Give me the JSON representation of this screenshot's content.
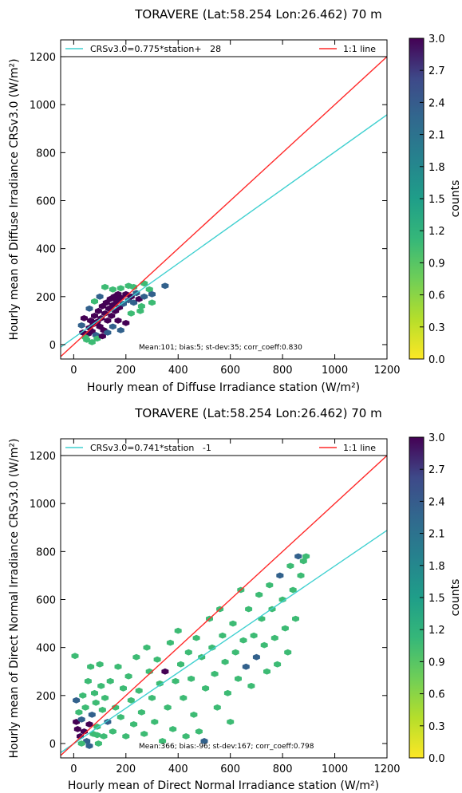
{
  "chart_data": [
    {
      "type": "scatter",
      "subtype": "hexbin-density",
      "title": "TORAVERE (Lat:58.254 Lon:26.462) 70 m",
      "xlabel": "Hourly mean of Diffuse Irradiance station (W/m²)",
      "ylabel": "Hourly mean of Diffuse Irradiance CRSv3.0 (W/m²)",
      "xlim": [
        -50,
        1200
      ],
      "ylim": [
        -60,
        1270
      ],
      "xticks": [
        0,
        200,
        400,
        600,
        800,
        1000,
        1200
      ],
      "yticks": [
        0,
        200,
        400,
        600,
        800,
        1000,
        1200
      ],
      "grid": false,
      "legend_placement": "top",
      "series": [
        {
          "name": "CRSv3.0=0.775*station+   28",
          "kind": "line",
          "slope": 0.775,
          "intercept": 28,
          "color": "#40d0d0"
        },
        {
          "name": "1:1 line",
          "kind": "line",
          "slope": 1,
          "intercept": 0,
          "color": "#ff2a2a"
        }
      ],
      "stats_text": "Mean:101; bias:5; st-dev:35; corr_coeff:0.830",
      "colorbar": {
        "label": "counts",
        "range": [
          0.0,
          3.0
        ],
        "ticks": [
          "0.0",
          "0.3",
          "0.6",
          "0.9",
          "1.2",
          "1.5",
          "1.8",
          "2.1",
          "2.4",
          "2.7",
          "3.0"
        ]
      },
      "points": [
        {
          "x": 50,
          "y": 20,
          "c": 1
        },
        {
          "x": 55,
          "y": 45,
          "c": 3
        },
        {
          "x": 60,
          "y": 70,
          "c": 3
        },
        {
          "x": 65,
          "y": 100,
          "c": 3
        },
        {
          "x": 70,
          "y": 55,
          "c": 3
        },
        {
          "x": 75,
          "y": 85,
          "c": 3
        },
        {
          "x": 80,
          "y": 120,
          "c": 3
        },
        {
          "x": 85,
          "y": 40,
          "c": 2
        },
        {
          "x": 90,
          "y": 95,
          "c": 3
        },
        {
          "x": 95,
          "y": 140,
          "c": 3
        },
        {
          "x": 100,
          "y": 75,
          "c": 3
        },
        {
          "x": 105,
          "y": 110,
          "c": 3
        },
        {
          "x": 110,
          "y": 160,
          "c": 3
        },
        {
          "x": 115,
          "y": 60,
          "c": 3
        },
        {
          "x": 120,
          "y": 130,
          "c": 3
        },
        {
          "x": 125,
          "y": 175,
          "c": 3
        },
        {
          "x": 130,
          "y": 100,
          "c": 3
        },
        {
          "x": 135,
          "y": 150,
          "c": 3
        },
        {
          "x": 140,
          "y": 190,
          "c": 3
        },
        {
          "x": 145,
          "y": 120,
          "c": 3
        },
        {
          "x": 150,
          "y": 165,
          "c": 3
        },
        {
          "x": 155,
          "y": 200,
          "c": 3
        },
        {
          "x": 160,
          "y": 140,
          "c": 3
        },
        {
          "x": 165,
          "y": 180,
          "c": 3
        },
        {
          "x": 170,
          "y": 210,
          "c": 3
        },
        {
          "x": 175,
          "y": 155,
          "c": 3
        },
        {
          "x": 180,
          "y": 195,
          "c": 3
        },
        {
          "x": 190,
          "y": 170,
          "c": 2
        },
        {
          "x": 200,
          "y": 210,
          "c": 3
        },
        {
          "x": 210,
          "y": 185,
          "c": 2
        },
        {
          "x": 220,
          "y": 200,
          "c": 3
        },
        {
          "x": 230,
          "y": 175,
          "c": 2
        },
        {
          "x": 240,
          "y": 215,
          "c": 2
        },
        {
          "x": 250,
          "y": 190,
          "c": 3
        },
        {
          "x": 270,
          "y": 200,
          "c": 2
        },
        {
          "x": 290,
          "y": 230,
          "c": 1
        },
        {
          "x": 350,
          "y": 245,
          "c": 2
        },
        {
          "x": 255,
          "y": 140,
          "c": 1
        },
        {
          "x": 200,
          "y": 90,
          "c": 3
        },
        {
          "x": 180,
          "y": 60,
          "c": 2
        },
        {
          "x": 220,
          "y": 130,
          "c": 1
        },
        {
          "x": 150,
          "y": 230,
          "c": 1
        },
        {
          "x": 120,
          "y": 240,
          "c": 1
        },
        {
          "x": 100,
          "y": 200,
          "c": 2
        },
        {
          "x": 80,
          "y": 180,
          "c": 1
        },
        {
          "x": 60,
          "y": 150,
          "c": 2
        },
        {
          "x": 40,
          "y": 110,
          "c": 3
        },
        {
          "x": 30,
          "y": 80,
          "c": 2
        },
        {
          "x": 35,
          "y": 50,
          "c": 3
        },
        {
          "x": 45,
          "y": 30,
          "c": 1
        },
        {
          "x": 70,
          "y": 10,
          "c": 1
        },
        {
          "x": 90,
          "y": 25,
          "c": 1
        },
        {
          "x": 110,
          "y": 35,
          "c": 3
        },
        {
          "x": 130,
          "y": 50,
          "c": 2
        },
        {
          "x": 150,
          "y": 75,
          "c": 2
        },
        {
          "x": 170,
          "y": 100,
          "c": 3
        },
        {
          "x": 230,
          "y": 240,
          "c": 1
        },
        {
          "x": 270,
          "y": 255,
          "c": 1
        },
        {
          "x": 300,
          "y": 210,
          "c": 2
        },
        {
          "x": 260,
          "y": 160,
          "c": 1
        },
        {
          "x": 300,
          "y": 175,
          "c": 1
        },
        {
          "x": 180,
          "y": 235,
          "c": 1
        },
        {
          "x": 210,
          "y": 245,
          "c": 1
        }
      ]
    },
    {
      "type": "scatter",
      "subtype": "hexbin-density",
      "title": "TORAVERE (Lat:58.254 Lon:26.462) 70 m",
      "xlabel": "Hourly mean of Direct Normal Irradiance station (W/m²)",
      "ylabel": "Hourly mean of Direct Normal Irradiance CRSv3.0 (W/m²)",
      "xlim": [
        -50,
        1200
      ],
      "ylim": [
        -60,
        1270
      ],
      "xticks": [
        0,
        200,
        400,
        600,
        800,
        1000,
        1200
      ],
      "yticks": [
        0,
        200,
        400,
        600,
        800,
        1000,
        1200
      ],
      "grid": false,
      "legend_placement": "top",
      "series": [
        {
          "name": "CRSv3.0=0.741*station   -1",
          "kind": "line",
          "slope": 0.741,
          "intercept": -1,
          "color": "#40d0d0"
        },
        {
          "name": "1:1 line",
          "kind": "line",
          "slope": 1,
          "intercept": 0,
          "color": "#ff2a2a"
        }
      ],
      "stats_text": "Mean:366; bias:-96; st-dev:167; corr_coeff:0.798",
      "colorbar": {
        "label": "counts",
        "range": [
          0.0,
          3.0
        ],
        "ticks": [
          "0.0",
          "0.3",
          "0.6",
          "0.9",
          "1.2",
          "1.5",
          "1.8",
          "2.1",
          "2.4",
          "2.7",
          "3.0"
        ]
      },
      "points": [
        {
          "x": 5,
          "y": 365,
          "c": 1
        },
        {
          "x": 10,
          "y": 180,
          "c": 2
        },
        {
          "x": 10,
          "y": 90,
          "c": 3
        },
        {
          "x": 15,
          "y": 60,
          "c": 3
        },
        {
          "x": 20,
          "y": 130,
          "c": 1
        },
        {
          "x": 25,
          "y": 30,
          "c": 3
        },
        {
          "x": 30,
          "y": 100,
          "c": 2
        },
        {
          "x": 35,
          "y": 200,
          "c": 1
        },
        {
          "x": 40,
          "y": 50,
          "c": 3
        },
        {
          "x": 45,
          "y": 150,
          "c": 1
        },
        {
          "x": 50,
          "y": 10,
          "c": 2
        },
        {
          "x": 55,
          "y": 260,
          "c": 1
        },
        {
          "x": 60,
          "y": 80,
          "c": 3
        },
        {
          "x": 65,
          "y": 320,
          "c": 1
        },
        {
          "x": 70,
          "y": 120,
          "c": 2
        },
        {
          "x": 75,
          "y": 40,
          "c": 1
        },
        {
          "x": 80,
          "y": 210,
          "c": 1
        },
        {
          "x": 85,
          "y": 170,
          "c": 1
        },
        {
          "x": 90,
          "y": 70,
          "c": 1
        },
        {
          "x": 95,
          "y": 0,
          "c": 1
        },
        {
          "x": 100,
          "y": 330,
          "c": 1
        },
        {
          "x": 105,
          "y": 240,
          "c": 1
        },
        {
          "x": 110,
          "y": 140,
          "c": 1
        },
        {
          "x": 115,
          "y": 30,
          "c": 1
        },
        {
          "x": 120,
          "y": 190,
          "c": 1
        },
        {
          "x": 130,
          "y": 90,
          "c": 2
        },
        {
          "x": 140,
          "y": 260,
          "c": 1
        },
        {
          "x": 150,
          "y": 50,
          "c": 1
        },
        {
          "x": 160,
          "y": 150,
          "c": 1
        },
        {
          "x": 170,
          "y": 320,
          "c": 1
        },
        {
          "x": 180,
          "y": 110,
          "c": 1
        },
        {
          "x": 190,
          "y": 230,
          "c": 1
        },
        {
          "x": 200,
          "y": 30,
          "c": 1
        },
        {
          "x": 210,
          "y": 280,
          "c": 1
        },
        {
          "x": 220,
          "y": 180,
          "c": 1
        },
        {
          "x": 230,
          "y": 80,
          "c": 1
        },
        {
          "x": 240,
          "y": 360,
          "c": 1
        },
        {
          "x": 250,
          "y": 220,
          "c": 1
        },
        {
          "x": 260,
          "y": 130,
          "c": 1
        },
        {
          "x": 270,
          "y": 40,
          "c": 1
        },
        {
          "x": 280,
          "y": 400,
          "c": 1
        },
        {
          "x": 290,
          "y": 300,
          "c": 1
        },
        {
          "x": 300,
          "y": 190,
          "c": 1
        },
        {
          "x": 310,
          "y": 90,
          "c": 1
        },
        {
          "x": 320,
          "y": 350,
          "c": 1
        },
        {
          "x": 330,
          "y": 250,
          "c": 1
        },
        {
          "x": 340,
          "y": 10,
          "c": 1
        },
        {
          "x": 350,
          "y": 300,
          "c": 3
        },
        {
          "x": 360,
          "y": 150,
          "c": 1
        },
        {
          "x": 370,
          "y": 420,
          "c": 1
        },
        {
          "x": 380,
          "y": 60,
          "c": 1
        },
        {
          "x": 390,
          "y": 260,
          "c": 1
        },
        {
          "x": 400,
          "y": 470,
          "c": 1
        },
        {
          "x": 410,
          "y": 330,
          "c": 1
        },
        {
          "x": 420,
          "y": 190,
          "c": 1
        },
        {
          "x": 430,
          "y": 30,
          "c": 1
        },
        {
          "x": 440,
          "y": 380,
          "c": 1
        },
        {
          "x": 450,
          "y": 270,
          "c": 1
        },
        {
          "x": 460,
          "y": 120,
          "c": 1
        },
        {
          "x": 470,
          "y": 440,
          "c": 1
        },
        {
          "x": 480,
          "y": 50,
          "c": 1
        },
        {
          "x": 490,
          "y": 360,
          "c": 1
        },
        {
          "x": 500,
          "y": 10,
          "c": 2
        },
        {
          "x": 505,
          "y": 230,
          "c": 1
        },
        {
          "x": 520,
          "y": 520,
          "c": 1
        },
        {
          "x": 530,
          "y": 400,
          "c": 1
        },
        {
          "x": 540,
          "y": 290,
          "c": 1
        },
        {
          "x": 550,
          "y": 150,
          "c": 1
        },
        {
          "x": 560,
          "y": 560,
          "c": 1
        },
        {
          "x": 570,
          "y": 450,
          "c": 1
        },
        {
          "x": 580,
          "y": 340,
          "c": 1
        },
        {
          "x": 590,
          "y": 210,
          "c": 1
        },
        {
          "x": 600,
          "y": 90,
          "c": 1
        },
        {
          "x": 610,
          "y": 500,
          "c": 1
        },
        {
          "x": 620,
          "y": 380,
          "c": 1
        },
        {
          "x": 630,
          "y": 270,
          "c": 1
        },
        {
          "x": 640,
          "y": 640,
          "c": 1
        },
        {
          "x": 650,
          "y": 430,
          "c": 1
        },
        {
          "x": 660,
          "y": 320,
          "c": 2
        },
        {
          "x": 670,
          "y": 560,
          "c": 1
        },
        {
          "x": 680,
          "y": 240,
          "c": 1
        },
        {
          "x": 690,
          "y": 450,
          "c": 1
        },
        {
          "x": 700,
          "y": 360,
          "c": 2
        },
        {
          "x": 710,
          "y": 620,
          "c": 1
        },
        {
          "x": 720,
          "y": 520,
          "c": 1
        },
        {
          "x": 730,
          "y": 410,
          "c": 1
        },
        {
          "x": 740,
          "y": 300,
          "c": 1
        },
        {
          "x": 750,
          "y": 660,
          "c": 1
        },
        {
          "x": 760,
          "y": 560,
          "c": 1
        },
        {
          "x": 770,
          "y": 440,
          "c": 1
        },
        {
          "x": 780,
          "y": 330,
          "c": 1
        },
        {
          "x": 790,
          "y": 700,
          "c": 2
        },
        {
          "x": 800,
          "y": 600,
          "c": 1
        },
        {
          "x": 810,
          "y": 480,
          "c": 1
        },
        {
          "x": 820,
          "y": 380,
          "c": 1
        },
        {
          "x": 830,
          "y": 740,
          "c": 1
        },
        {
          "x": 840,
          "y": 640,
          "c": 1
        },
        {
          "x": 850,
          "y": 520,
          "c": 1
        },
        {
          "x": 860,
          "y": 780,
          "c": 2
        },
        {
          "x": 870,
          "y": 700,
          "c": 1
        },
        {
          "x": 880,
          "y": 760,
          "c": 1
        },
        {
          "x": 890,
          "y": 780,
          "c": 1
        },
        {
          "x": 30,
          "y": 0,
          "c": 1
        },
        {
          "x": 60,
          "y": -10,
          "c": 2
        },
        {
          "x": 90,
          "y": 35,
          "c": 1
        }
      ]
    }
  ]
}
